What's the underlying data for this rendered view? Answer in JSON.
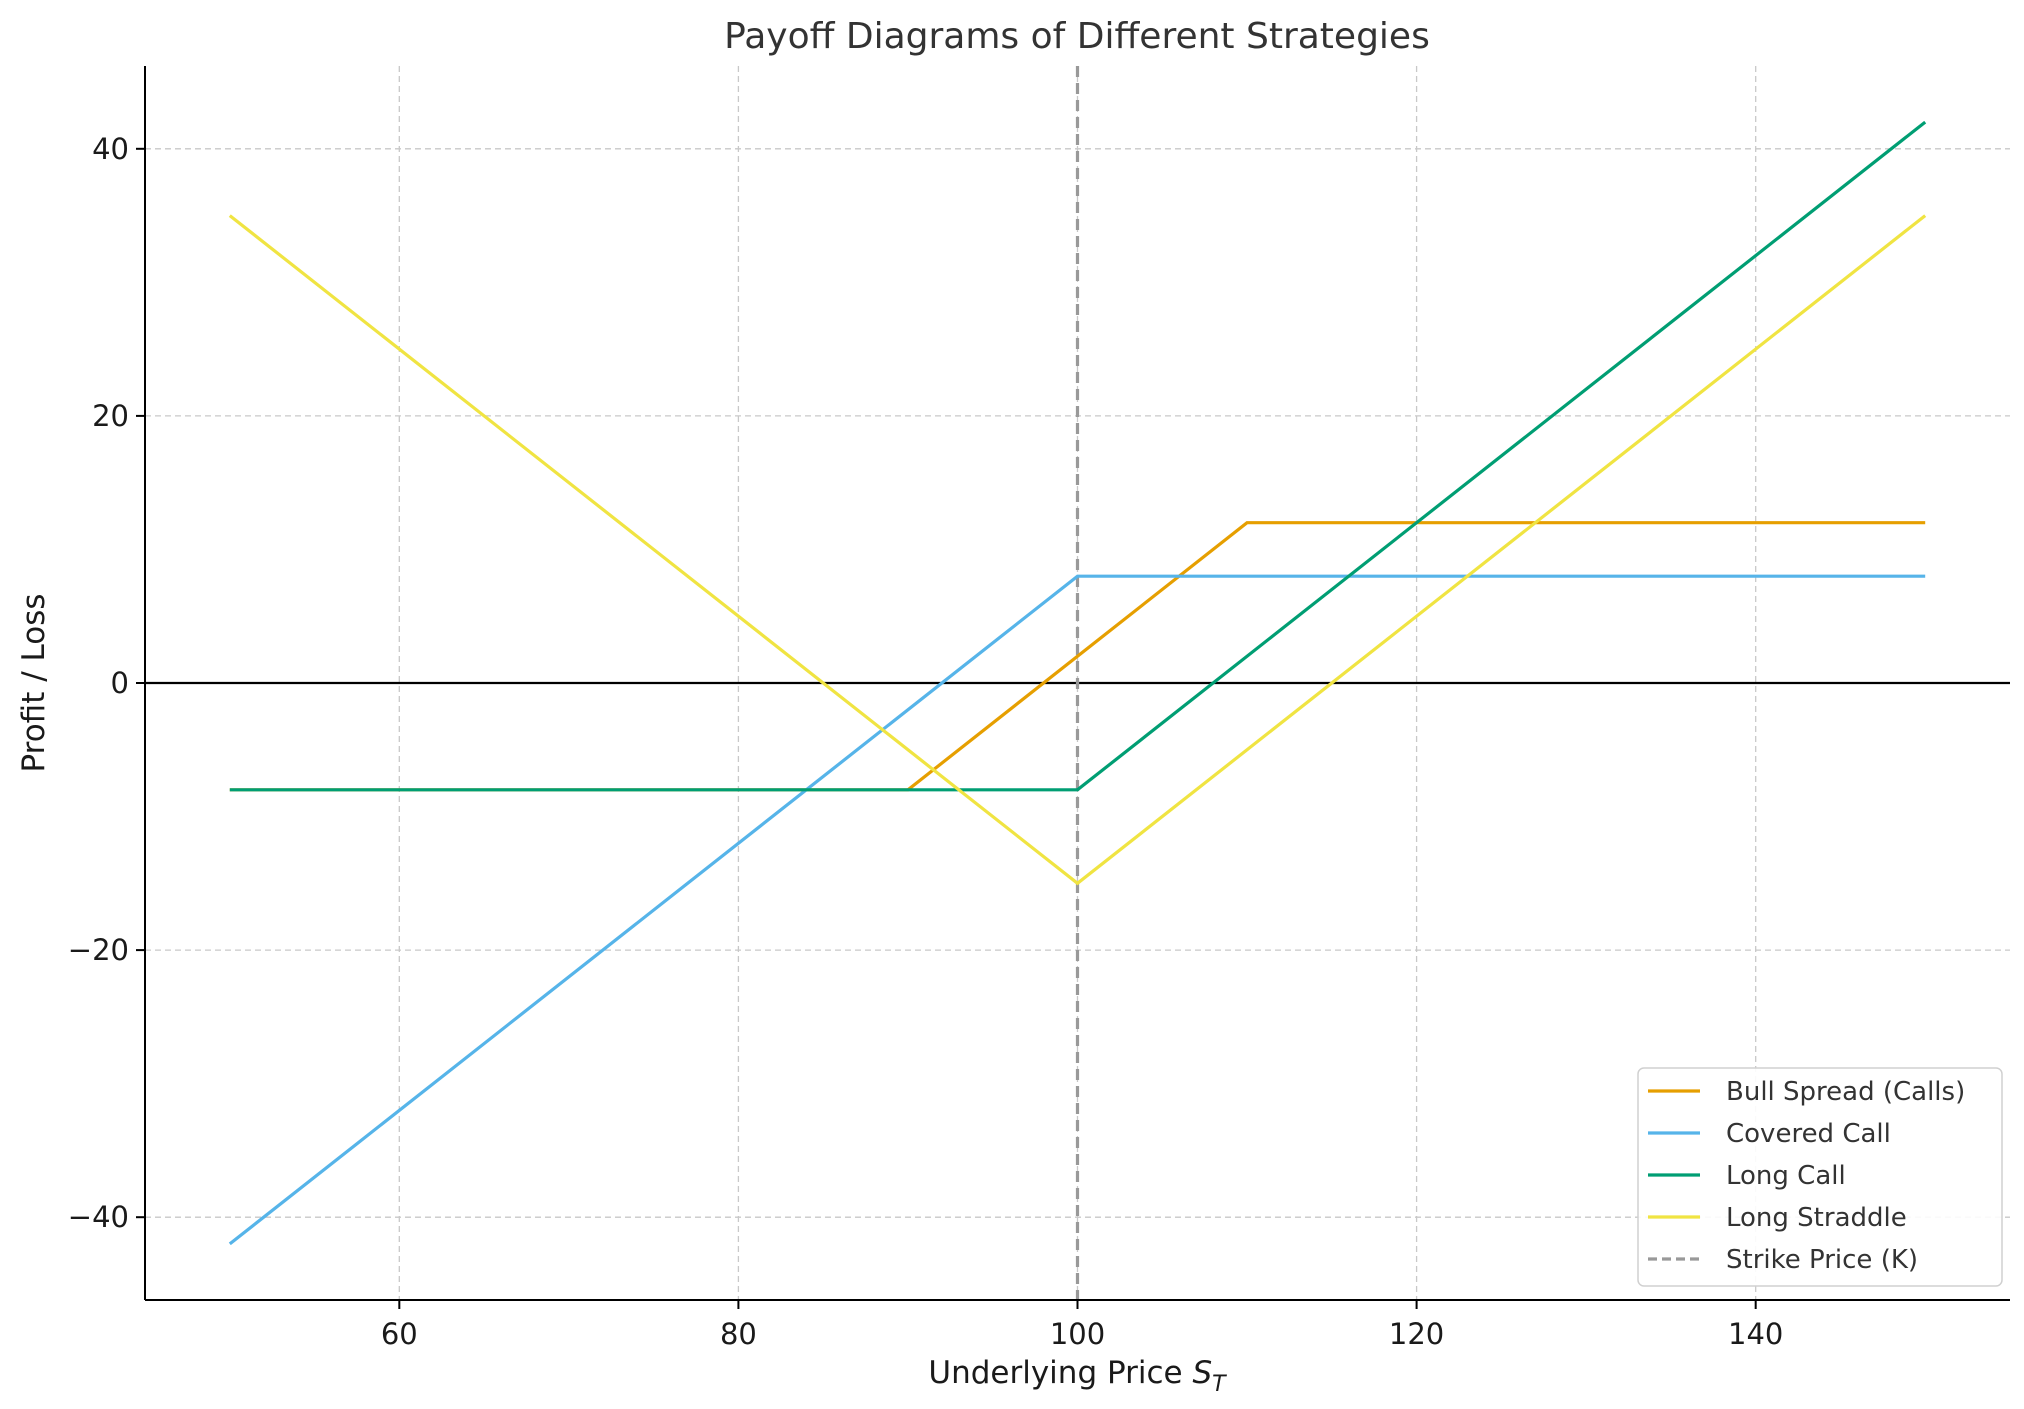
{
  "chart_data": {
    "type": "line",
    "title": "Payoff Diagrams of Different Strategies",
    "xlabel": "Underlying Price",
    "xlabel_symbol": "S",
    "xlabel_subscript": "T",
    "ylabel": "Profit / Loss",
    "xlim": [
      45,
      155
    ],
    "ylim": [
      -46.2,
      46.2
    ],
    "xticks": [
      60,
      80,
      100,
      120,
      140
    ],
    "yticks": [
      -40,
      -20,
      0,
      20,
      40
    ],
    "grid": true,
    "legend_position": "lower-right",
    "zero_line": 0,
    "series": [
      {
        "name": "Bull Spread (Calls)",
        "color": "#E69F00",
        "style": "solid",
        "points": [
          [
            50,
            -8
          ],
          [
            90,
            -8
          ],
          [
            110,
            12
          ],
          [
            150,
            12
          ]
        ]
      },
      {
        "name": "Covered Call",
        "color": "#56B4E9",
        "style": "solid",
        "points": [
          [
            50,
            -42
          ],
          [
            100,
            8
          ],
          [
            150,
            8
          ]
        ]
      },
      {
        "name": "Long Call",
        "color": "#009E73",
        "style": "solid",
        "points": [
          [
            50,
            -8
          ],
          [
            100,
            -8
          ],
          [
            150,
            42
          ]
        ]
      },
      {
        "name": "Long Straddle",
        "color": "#F0E442",
        "style": "solid",
        "points": [
          [
            50,
            35
          ],
          [
            100,
            -15
          ],
          [
            150,
            35
          ]
        ]
      },
      {
        "name": "Strike Price (K)",
        "color": "#999999",
        "style": "dashed",
        "vline": 100
      }
    ]
  }
}
